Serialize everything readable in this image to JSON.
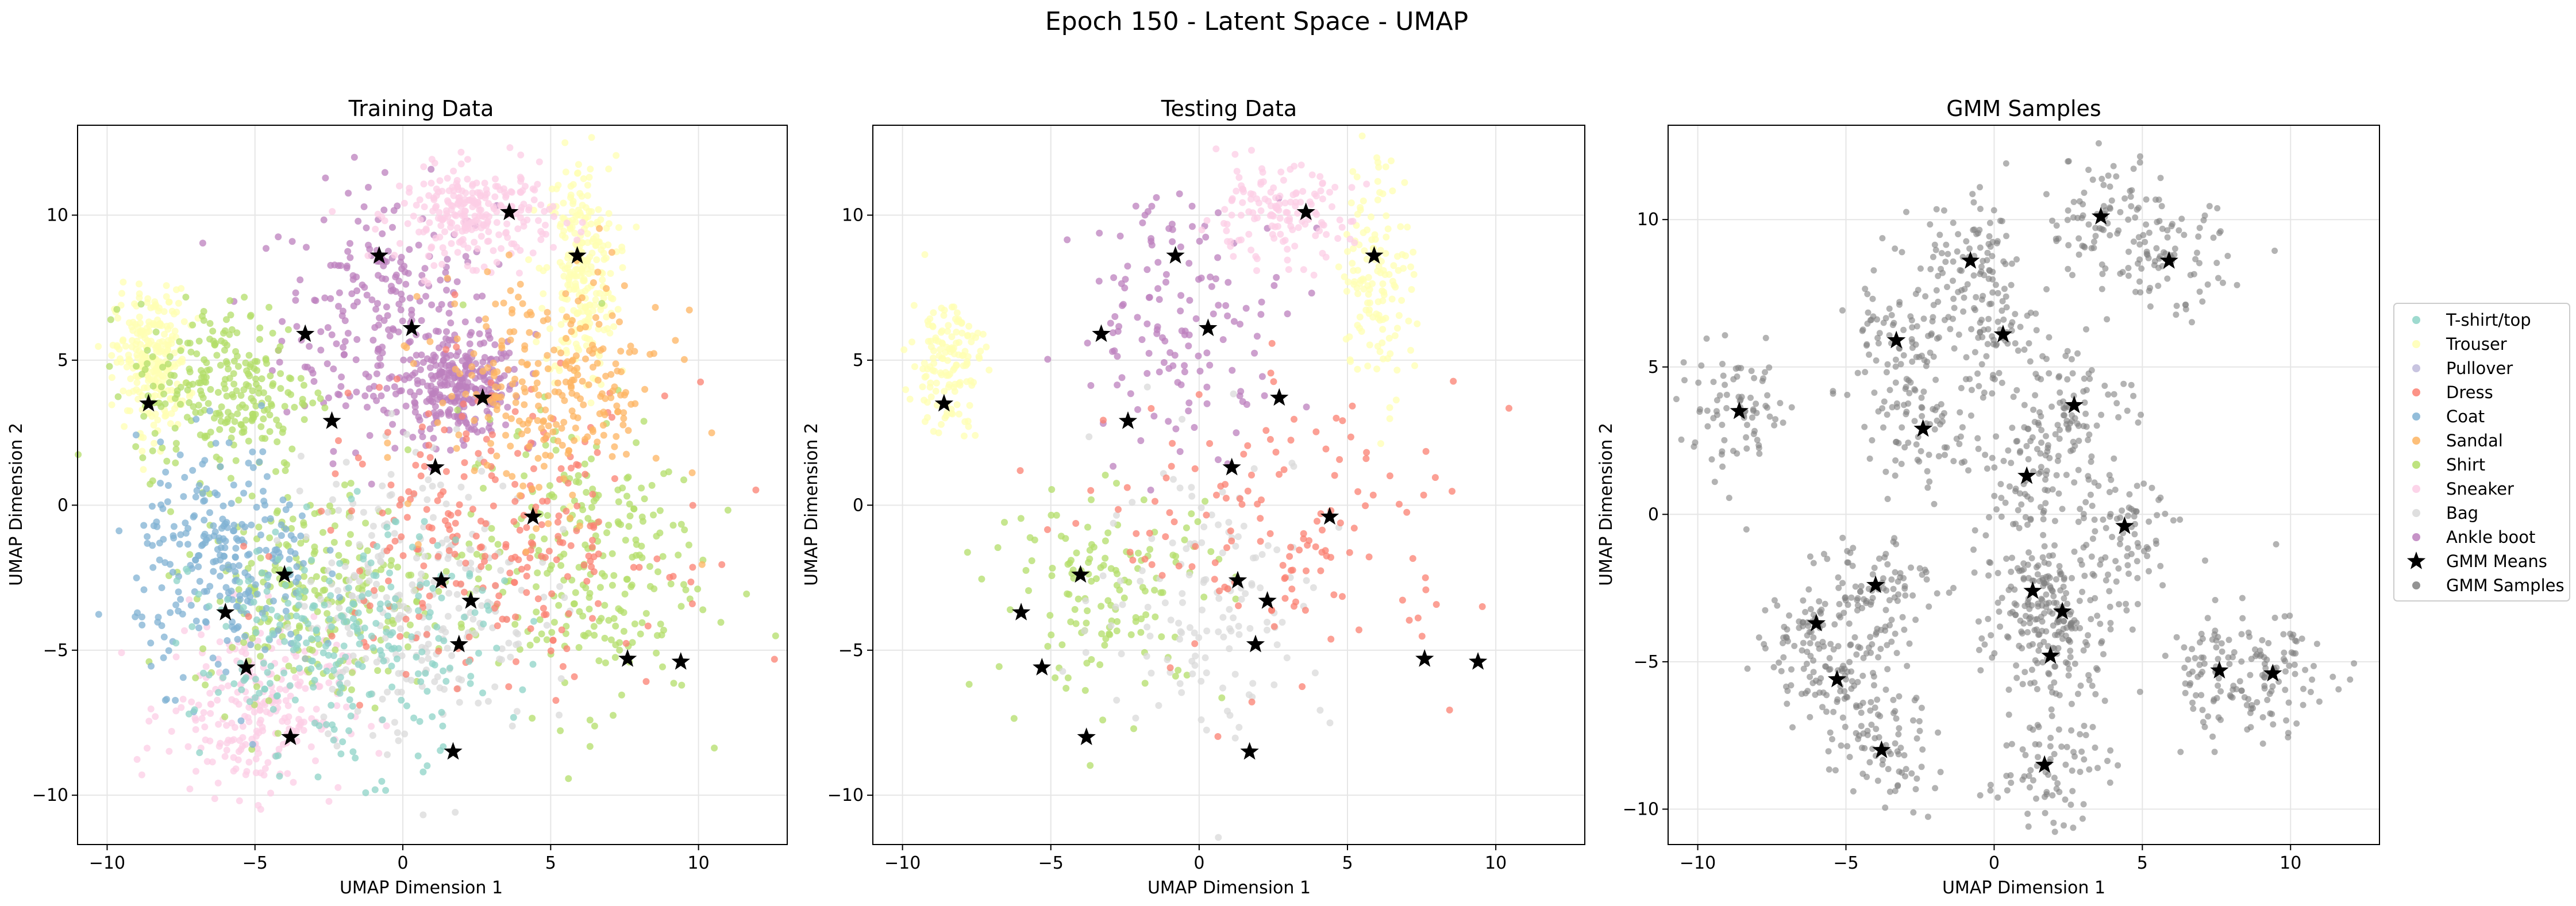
{
  "figure": {
    "suptitle": "Epoch 150 - Latent Space - UMAP"
  },
  "legend": {
    "placement": "outside-right",
    "items": [
      {
        "label": "T-shirt/top",
        "color": "#8dd3c7",
        "marker": "circle"
      },
      {
        "label": "Trouser",
        "color": "#ffffb3",
        "marker": "circle"
      },
      {
        "label": "Pullover",
        "color": "#bebada",
        "marker": "circle"
      },
      {
        "label": "Dress",
        "color": "#fb8072",
        "marker": "circle"
      },
      {
        "label": "Coat",
        "color": "#80b1d3",
        "marker": "circle"
      },
      {
        "label": "Sandal",
        "color": "#fdb462",
        "marker": "circle"
      },
      {
        "label": "Shirt",
        "color": "#b3de69",
        "marker": "circle"
      },
      {
        "label": "Sneaker",
        "color": "#fccde5",
        "marker": "circle"
      },
      {
        "label": "Bag",
        "color": "#d9d9d9",
        "marker": "circle"
      },
      {
        "label": "Ankle boot",
        "color": "#bc80bd",
        "marker": "circle"
      },
      {
        "label": "GMM Means",
        "color": "#000000",
        "marker": "star"
      },
      {
        "label": "GMM Samples",
        "color": "#808080",
        "marker": "circle"
      }
    ]
  },
  "gmm_means": [
    [
      3.6,
      10.1
    ],
    [
      5.9,
      8.6
    ],
    [
      -0.8,
      8.6
    ],
    [
      -3.3,
      5.9
    ],
    [
      0.3,
      6.1
    ],
    [
      2.7,
      3.7
    ],
    [
      -2.4,
      2.9
    ],
    [
      -8.6,
      3.5
    ],
    [
      1.1,
      1.3
    ],
    [
      4.4,
      -0.4
    ],
    [
      -4.0,
      -2.4
    ],
    [
      1.3,
      -2.6
    ],
    [
      2.3,
      -3.3
    ],
    [
      -6.0,
      -3.7
    ],
    [
      1.9,
      -4.8
    ],
    [
      -5.3,
      -5.6
    ],
    [
      7.6,
      -5.3
    ],
    [
      9.4,
      -5.4
    ],
    [
      -3.8,
      -8.0
    ],
    [
      1.7,
      -8.5
    ]
  ],
  "chart_data": [
    {
      "type": "scatter",
      "title": "Training Data",
      "xlabel": "UMAP Dimension 1",
      "ylabel": "UMAP Dimension 2",
      "xlim": [
        -11,
        13
      ],
      "ylim": [
        -11.7,
        13.1
      ],
      "xticks": [
        -10,
        -5,
        0,
        5,
        10
      ],
      "yticks": [
        -10,
        -5,
        0,
        5,
        10
      ],
      "grid": true,
      "point_count_approx": 60000,
      "clusters": [
        {
          "class": "Ankle boot",
          "center": [
            -0.5,
            6.5
          ],
          "spread": [
            1.8,
            2.2
          ]
        },
        {
          "class": "Ankle boot",
          "center": [
            2.0,
            4.0
          ],
          "spread": [
            1.0,
            0.8
          ]
        },
        {
          "class": "Trouser",
          "center": [
            6.0,
            8.0
          ],
          "spread": [
            0.6,
            2.0
          ]
        },
        {
          "class": "Trouser",
          "center": [
            -8.5,
            5.0
          ],
          "spread": [
            0.6,
            1.2
          ]
        },
        {
          "class": "Sneaker",
          "center": [
            2.5,
            10.0
          ],
          "spread": [
            1.3,
            0.8
          ]
        },
        {
          "class": "Sneaker",
          "center": [
            -5.0,
            -7.0
          ],
          "spread": [
            1.5,
            1.5
          ]
        },
        {
          "class": "Shirt",
          "center": [
            -6.0,
            4.0
          ],
          "spread": [
            1.5,
            1.5
          ]
        },
        {
          "class": "Shirt",
          "center": [
            -3.0,
            -3.0
          ],
          "spread": [
            2.0,
            1.8
          ]
        },
        {
          "class": "Shirt",
          "center": [
            6.0,
            -2.0
          ],
          "spread": [
            2.0,
            2.5
          ]
        },
        {
          "class": "Bag",
          "center": [
            0.5,
            -3.0
          ],
          "spread": [
            2.0,
            2.5
          ]
        },
        {
          "class": "Coat",
          "center": [
            -6.0,
            -2.0
          ],
          "spread": [
            1.5,
            2.0
          ]
        },
        {
          "class": "Dress",
          "center": [
            3.0,
            -1.0
          ],
          "spread": [
            3.0,
            2.5
          ]
        },
        {
          "class": "Sandal",
          "center": [
            5.0,
            4.0
          ],
          "spread": [
            2.0,
            2.0
          ]
        },
        {
          "class": "T-shirt/top",
          "center": [
            -2.0,
            -5.0
          ],
          "spread": [
            2.5,
            2.0
          ]
        }
      ]
    },
    {
      "type": "scatter",
      "title": "Testing Data",
      "xlabel": "UMAP Dimension 1",
      "ylabel": "UMAP Dimension 2",
      "xlim": [
        -11,
        13
      ],
      "ylim": [
        -11.7,
        13.1
      ],
      "xticks": [
        -10,
        -5,
        0,
        5,
        10
      ],
      "yticks": [
        -10,
        -5,
        0,
        5,
        10
      ],
      "grid": true,
      "point_count_approx": 10000,
      "clusters": [
        {
          "class": "Ankle boot",
          "center": [
            -0.5,
            6.5
          ],
          "spread": [
            1.8,
            2.2
          ]
        },
        {
          "class": "Trouser",
          "center": [
            6.0,
            8.0
          ],
          "spread": [
            0.6,
            2.0
          ]
        },
        {
          "class": "Trouser",
          "center": [
            -8.5,
            5.0
          ],
          "spread": [
            0.6,
            1.2
          ]
        },
        {
          "class": "Sneaker",
          "center": [
            2.5,
            10.0
          ],
          "spread": [
            1.3,
            0.8
          ]
        },
        {
          "class": "Shirt",
          "center": [
            -3.0,
            -3.0
          ],
          "spread": [
            2.0,
            1.8
          ]
        },
        {
          "class": "Bag",
          "center": [
            0.5,
            -3.0
          ],
          "spread": [
            2.0,
            2.5
          ]
        },
        {
          "class": "Dress",
          "center": [
            3.0,
            -1.0
          ],
          "spread": [
            3.0,
            2.5
          ]
        }
      ]
    },
    {
      "type": "scatter",
      "title": "GMM Samples",
      "xlabel": "UMAP Dimension 1",
      "ylabel": "UMAP Dimension 2",
      "xlim": [
        -11,
        13
      ],
      "ylim": [
        -11.2,
        13.2
      ],
      "xticks": [
        -10,
        -5,
        0,
        5,
        10
      ],
      "yticks": [
        -10,
        -5,
        0,
        5,
        10
      ],
      "grid": true,
      "point_count_approx": 2000,
      "series": [
        {
          "name": "GMM Samples",
          "color": "#808080"
        }
      ]
    }
  ]
}
